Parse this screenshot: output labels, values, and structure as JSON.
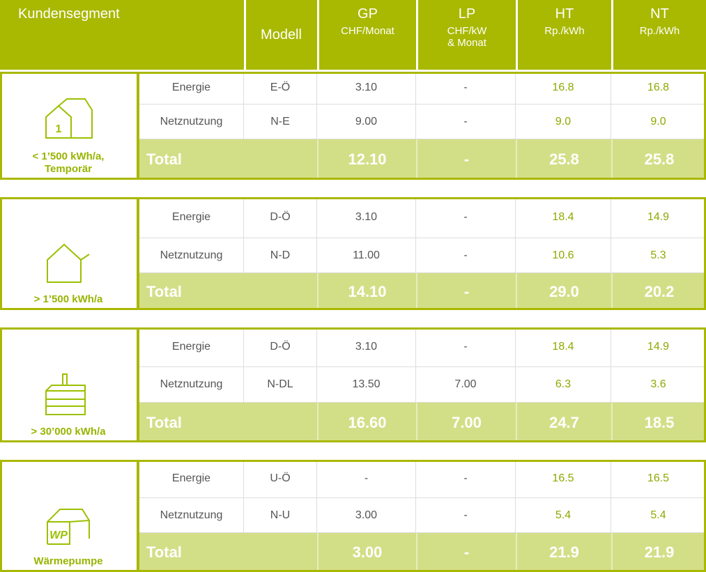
{
  "header": {
    "segment": "Kundensegment",
    "model": "Modell",
    "columns": [
      {
        "name": "GP",
        "unit": [
          "CHF/Monat"
        ]
      },
      {
        "name": "LP",
        "unit": [
          "CHF/kW",
          "& Monat"
        ]
      },
      {
        "name": "HT",
        "unit": [
          "Rp./kWh"
        ]
      },
      {
        "name": "NT",
        "unit": [
          "Rp./kWh"
        ]
      }
    ]
  },
  "groups": [
    {
      "segment": [
        "< 1’500 kWh/a,",
        "Temporär"
      ],
      "rows": [
        {
          "name": "Energie",
          "model": "E-Ö",
          "values": [
            "3.10",
            "-",
            "16.8",
            "16.8"
          ]
        },
        {
          "name": "Netznutzung",
          "model": "N-E",
          "values": [
            "9.00",
            "-",
            "9.0",
            "9.0"
          ]
        }
      ],
      "total": {
        "name": "Total",
        "values": [
          "12.10",
          "-",
          "25.8",
          "25.8"
        ]
      }
    },
    {
      "segment": [
        "> 1’500 kWh/a"
      ],
      "rows": [
        {
          "name": "Energie",
          "model": "D-Ö",
          "values": [
            "3.10",
            "-",
            "18.4",
            "14.9"
          ]
        },
        {
          "name": "Netznutzung",
          "model": "N-D",
          "values": [
            "11.00",
            "-",
            "10.6",
            "5.3"
          ]
        }
      ],
      "total": {
        "name": "Total",
        "values": [
          "14.10",
          "-",
          "29.0",
          "20.2"
        ]
      }
    },
    {
      "segment": [
        "> 30’000 kWh/a"
      ],
      "rows": [
        {
          "name": "Energie",
          "model": "D-Ö",
          "values": [
            "3.10",
            "-",
            "18.4",
            "14.9"
          ]
        },
        {
          "name": "Netznutzung",
          "model": "N-DL",
          "values": [
            "13.50",
            "7.00",
            "6.3",
            "3.6"
          ]
        }
      ],
      "total": {
        "name": "Total",
        "values": [
          "16.60",
          "7.00",
          "24.7",
          "18.5"
        ]
      }
    },
    {
      "segment": [
        "Wärmepumpe"
      ],
      "rows": [
        {
          "name": "Energie",
          "model": "U-Ö",
          "values": [
            "-",
            "-",
            "16.5",
            "16.5"
          ]
        },
        {
          "name": "Netznutzung",
          "model": "N-U",
          "values": [
            "3.00",
            "-",
            "5.4",
            "5.4"
          ]
        }
      ],
      "total": {
        "name": "Total",
        "values": [
          "3.00",
          "-",
          "21.9",
          "21.9"
        ]
      }
    }
  ]
}
